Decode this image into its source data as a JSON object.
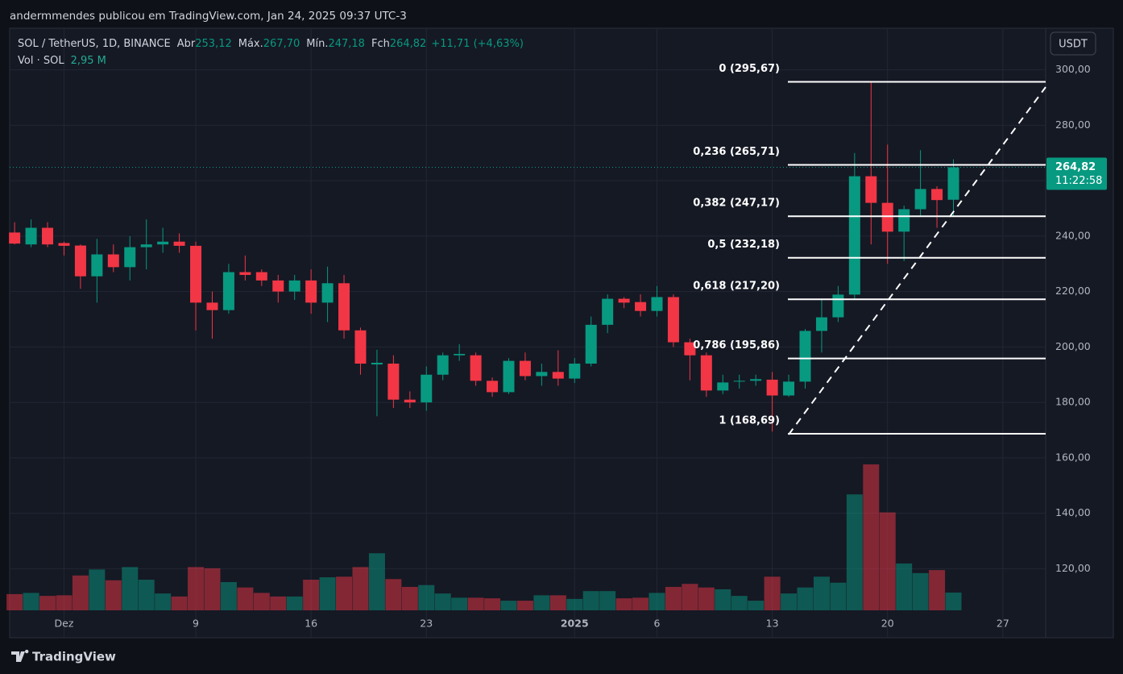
{
  "header": {
    "publisher": "andermmendes publicou em TradingView.com, Jan 24, 2025 09:37 UTC-3",
    "brand": "TradingView"
  },
  "chart_data": {
    "type": "candlestick",
    "title": "SOL / TetherUS, 1D, BINANCE",
    "legend": {
      "open_label": "Abr",
      "open": "253,12",
      "high_label": "Máx.",
      "high": "267,70",
      "low_label": "Mín.",
      "low": "247,18",
      "close_label": "Fch",
      "close": "264,82",
      "change": "+11,71 (+4,63%)"
    },
    "volume_label": "Vol · SOL",
    "volume_value_label": "2,95 M",
    "currency": "USDT",
    "last_price_label": "264,82",
    "countdown": "11:22:58",
    "up_color": "#089981",
    "down_color": "#f23645",
    "open": [
      241.3,
      237,
      243,
      237.5,
      236.6,
      225.5,
      233.4,
      228.8,
      236,
      237,
      238,
      236.5,
      216,
      213.3,
      227,
      227,
      224,
      220,
      224,
      216,
      223,
      206,
      193.7,
      194,
      181,
      180,
      190,
      197,
      197,
      187.8,
      183.7,
      195,
      189.5,
      191,
      188.6,
      194,
      208,
      217.4,
      216.2,
      213,
      218,
      201.7,
      197,
      184.3,
      187.5,
      187.8,
      188.2,
      182.5,
      187.5,
      205.8,
      210.7,
      218.9,
      261.6,
      252,
      241.6,
      249.7,
      257,
      253.12
    ],
    "high": [
      245,
      246,
      245,
      238,
      237,
      239,
      237,
      240,
      246,
      243,
      241,
      238,
      220,
      230,
      233,
      228,
      226,
      226,
      228,
      229,
      226,
      207,
      199,
      197,
      184,
      193,
      198,
      201,
      198,
      189,
      196,
      198,
      194,
      198.8,
      196,
      211,
      219,
      218,
      219,
      222,
      219,
      203,
      198,
      190,
      190,
      190,
      191,
      190,
      206.5,
      217,
      222,
      270,
      295.4,
      273,
      251,
      271,
      258,
      267.7
    ],
    "low": [
      237,
      236,
      236,
      233,
      221,
      216,
      227,
      224,
      228,
      234,
      234,
      206,
      203,
      212,
      224,
      222,
      216,
      217,
      212,
      209,
      203,
      190,
      175,
      178,
      178,
      177,
      188,
      195,
      186,
      182,
      183,
      188,
      186,
      186,
      187,
      193,
      205,
      214,
      211,
      211,
      200,
      188,
      182,
      183,
      185,
      186,
      169.5,
      182,
      185,
      198,
      209,
      217,
      237,
      230,
      231,
      247,
      243,
      247.18
    ],
    "close": [
      237.3,
      243,
      237,
      236.5,
      225.5,
      233.4,
      228.8,
      236,
      237,
      238,
      236.5,
      216,
      213.3,
      227,
      226,
      224,
      220,
      224,
      216,
      223,
      206,
      194,
      194.3,
      181,
      180,
      190,
      197,
      197.5,
      187.8,
      183.7,
      195,
      189.5,
      191,
      188.6,
      194,
      208,
      217.4,
      216,
      213,
      218,
      201.7,
      197,
      184.3,
      187.2,
      187.8,
      188.4,
      182.5,
      187.5,
      205.8,
      210.7,
      218.9,
      261.6,
      252,
      241.6,
      249.7,
      257,
      253,
      264.82
    ],
    "volume": [
      2.7,
      2.9,
      2.4,
      2.5,
      5.8,
      6.8,
      5.0,
      7.2,
      5.1,
      2.8,
      2.3,
      7.2,
      7.0,
      4.7,
      3.8,
      2.9,
      2.3,
      2.3,
      5.1,
      5.5,
      5.6,
      7.2,
      9.5,
      5.2,
      3.9,
      4.2,
      2.8,
      2.1,
      2.1,
      2.0,
      1.6,
      1.6,
      2.5,
      2.5,
      1.9,
      3.2,
      3.2,
      2.0,
      2.1,
      2.9,
      3.9,
      4.4,
      3.8,
      3.5,
      2.4,
      1.6,
      5.6,
      2.8,
      3.8,
      5.6,
      4.6,
      19.3,
      24.3,
      16.3,
      7.8,
      6.2,
      6.7,
      2.95
    ],
    "xlim": [
      -0.3,
      62.6
    ],
    "xticks": [
      {
        "value": 3,
        "label": "Dez"
      },
      {
        "value": 11,
        "label": "9"
      },
      {
        "value": 18,
        "label": "16"
      },
      {
        "value": 25,
        "label": "23"
      },
      {
        "value": 34,
        "label": "2025"
      },
      {
        "value": 39,
        "label": "6"
      },
      {
        "value": 46,
        "label": "13"
      },
      {
        "value": 53,
        "label": "20"
      },
      {
        "value": 60,
        "label": "27"
      }
    ],
    "ylim": [
      105,
      315
    ],
    "yticks": [
      {
        "value": 120,
        "label": "120,00"
      },
      {
        "value": 140,
        "label": "140,00"
      },
      {
        "value": 160,
        "label": "160,00"
      },
      {
        "value": 180,
        "label": "180,00"
      },
      {
        "value": 200,
        "label": "200,00"
      },
      {
        "value": 220,
        "label": "220,00"
      },
      {
        "value": 240,
        "label": "240,00"
      },
      {
        "value": 260,
        "label": "260,00"
      },
      {
        "value": 280,
        "label": "280,00"
      },
      {
        "value": 300,
        "label": "300,00"
      }
    ],
    "fib_levels": [
      {
        "label": "0 (295,67)",
        "value": 295.67
      },
      {
        "label": "0,236 (265,71)",
        "value": 265.71
      },
      {
        "label": "0,382 (247,17)",
        "value": 247.17
      },
      {
        "label": "0,5 (232,18)",
        "value": 232.18
      },
      {
        "label": "0,618 (217,20)",
        "value": 217.2
      },
      {
        "label": "0,786 (195,86)",
        "value": 195.86
      },
      {
        "label": "1 (168,69)",
        "value": 168.69
      }
    ]
  }
}
